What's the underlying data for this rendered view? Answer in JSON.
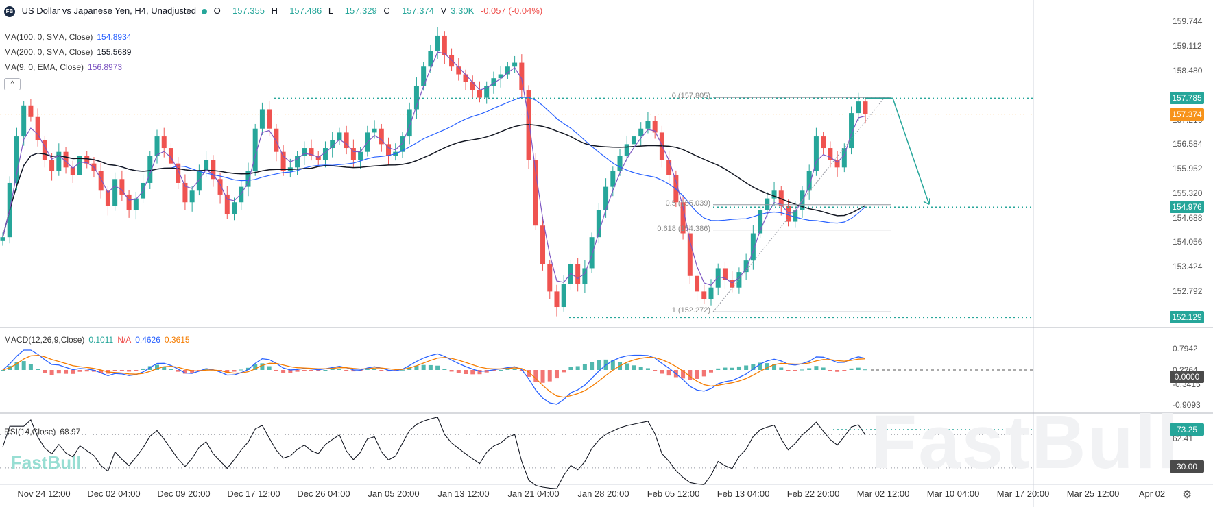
{
  "header": {
    "logo": "FB",
    "title": "US Dollar vs Japanese Yen, H4, Unadjusted",
    "open_label": "O =",
    "open": "157.355",
    "high_label": "H =",
    "high": "157.486",
    "low_label": "L =",
    "low": "157.329",
    "close_label": "C =",
    "close": "157.374",
    "volume_label": "V",
    "volume": "3.30K",
    "change": "-0.057 (-0.04%)"
  },
  "indicators": {
    "ma100": {
      "label": "MA(100, 0, SMA, Close)",
      "value": "154.8934",
      "color": "#2962ff"
    },
    "ma200": {
      "label": "MA(200, 0, SMA, Close)",
      "value": "155.5689",
      "color": "#131722"
    },
    "ema9": {
      "label": "MA(9, 0, EMA, Close)",
      "value": "156.8973",
      "color": "#7e57c2"
    },
    "collapse": "^"
  },
  "macd": {
    "label": "MACD(12,26,9,Close)",
    "hist": "0.1011",
    "na": "N/A",
    "macd": "0.4626",
    "signal": "0.3615"
  },
  "rsi": {
    "label": "RSI(14,Close)",
    "value": "68.97"
  },
  "price_axis": [
    "159.744",
    "159.112",
    "158.480",
    "157.216",
    "156.584",
    "155.952",
    "155.320",
    "154.688",
    "154.056",
    "153.424",
    "152.792"
  ],
  "price_tags": [
    {
      "value": "157.785",
      "color": "#26a69a"
    },
    {
      "value": "157.374",
      "color": "#f7931a"
    },
    {
      "value": "154.976",
      "color": "#26a69a"
    },
    {
      "value": "152.129",
      "color": "#26a69a"
    }
  ],
  "macd_axis": [
    "0.7942",
    "0.2264",
    "-0.3415",
    "-0.9093"
  ],
  "macd_zero_tag": "0.0000",
  "rsi_tags": {
    "upper": "73.25",
    "lower": "30.00",
    "mid": "62.41"
  },
  "time_axis": [
    "Nov 24 12:00",
    "Dec 02 04:00",
    "Dec 09 20:00",
    "Dec 17 12:00",
    "Dec 26 04:00",
    "Jan 05 20:00",
    "Jan 13 12:00",
    "Jan 21 04:00",
    "Jan 28 20:00",
    "Feb 05 12:00",
    "Feb 13 04:00",
    "Feb 22 20:00",
    "Mar 02 12:00",
    "Mar 10 04:00",
    "Mar 17 20:00",
    "Mar 25 12:00",
    "Apr 02"
  ],
  "fib_levels": [
    {
      "label": "0 (157.805)",
      "price": 157.805
    },
    {
      "label": "0.5 (155.039)",
      "price": 155.039
    },
    {
      "label": "0.618 (154.386)",
      "price": 154.386
    },
    {
      "label": "1 (152.272)",
      "price": 152.272
    }
  ],
  "watermark": "FastBull",
  "chart_data": {
    "type": "candlestick",
    "title": "US Dollar vs Japanese Yen, H4, Unadjusted",
    "ylim": [
      152.1,
      160.0
    ],
    "x_range": [
      "Nov 24 12:00",
      "Apr 02"
    ],
    "closes": [
      154.2,
      155.6,
      156.8,
      157.6,
      157.3,
      156.7,
      156.2,
      155.9,
      156.4,
      156.0,
      155.8,
      156.3,
      156.1,
      155.9,
      155.4,
      155.0,
      155.7,
      155.3,
      154.9,
      155.2,
      155.6,
      156.3,
      156.8,
      156.5,
      156.1,
      155.6,
      155.1,
      155.4,
      155.9,
      156.2,
      155.7,
      155.3,
      154.8,
      155.1,
      155.5,
      155.9,
      157.0,
      157.5,
      157.0,
      156.4,
      155.9,
      156.0,
      156.3,
      156.5,
      156.3,
      156.2,
      156.5,
      156.7,
      156.9,
      156.5,
      156.2,
      156.4,
      156.9,
      157.0,
      156.6,
      156.3,
      156.4,
      156.8,
      157.5,
      158.1,
      158.6,
      159.0,
      159.4,
      158.9,
      158.6,
      158.4,
      158.2,
      158.0,
      157.8,
      158.1,
      158.3,
      158.4,
      158.6,
      158.7,
      158.0,
      156.2,
      154.5,
      153.5,
      152.8,
      152.4,
      153.0,
      153.5,
      153.0,
      153.4,
      154.2,
      154.9,
      155.5,
      155.9,
      156.3,
      156.6,
      156.8,
      157.0,
      157.2,
      156.9,
      156.2,
      155.8,
      155.1,
      154.3,
      153.2,
      152.8,
      152.6,
      152.9,
      153.4,
      153.1,
      152.9,
      153.3,
      153.6,
      154.3,
      154.9,
      155.2,
      155.4,
      155.0,
      154.6,
      154.9,
      155.4,
      155.9,
      156.8,
      156.5,
      156.2,
      156.0,
      156.5,
      157.4,
      157.7,
      157.374
    ],
    "series": [
      {
        "name": "MA(100, 0, SMA, Close)",
        "last": 154.8934
      },
      {
        "name": "MA(200, 0, SMA, Close)",
        "last": 155.5689
      },
      {
        "name": "MA(9, 0, EMA, Close)",
        "last": 156.8973
      }
    ],
    "projection": {
      "from": 157.785,
      "to": 154.976
    }
  }
}
